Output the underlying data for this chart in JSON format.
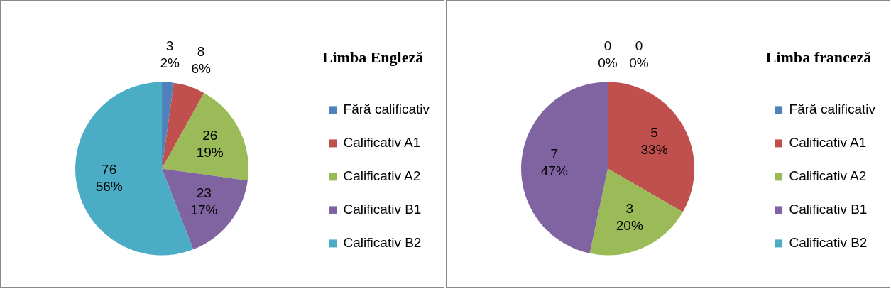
{
  "chart_data": [
    {
      "type": "pie",
      "title": "Limba Engleză",
      "categories": [
        "Fără calificativ",
        "Calificativ A1",
        "Calificativ A2",
        "Calificativ B1",
        "Calificativ B2"
      ],
      "values": [
        3,
        8,
        26,
        23,
        76
      ],
      "colors": [
        "#4f81bd",
        "#c0504d",
        "#9bbb59",
        "#8064a2",
        "#4bacc6"
      ],
      "value_labels": [
        "3\n2%",
        "8\n6%",
        "26\n19%",
        "23\n17%",
        "76\n56%"
      ],
      "legend": "right"
    },
    {
      "type": "pie",
      "title": "Limba franceză",
      "categories": [
        "Fără calificativ",
        "Calificativ A1",
        "Calificativ A2",
        "Calificativ B1",
        "Calificativ B2"
      ],
      "values": [
        0,
        5,
        3,
        7,
        0
      ],
      "colors": [
        "#4f81bd",
        "#c0504d",
        "#9bbb59",
        "#8064a2",
        "#4bacc6"
      ],
      "value_labels": [
        "0\n0%",
        "5\n33%",
        "3\n20%",
        "7\n47%",
        "0\n0%"
      ],
      "legend": "right"
    }
  ]
}
